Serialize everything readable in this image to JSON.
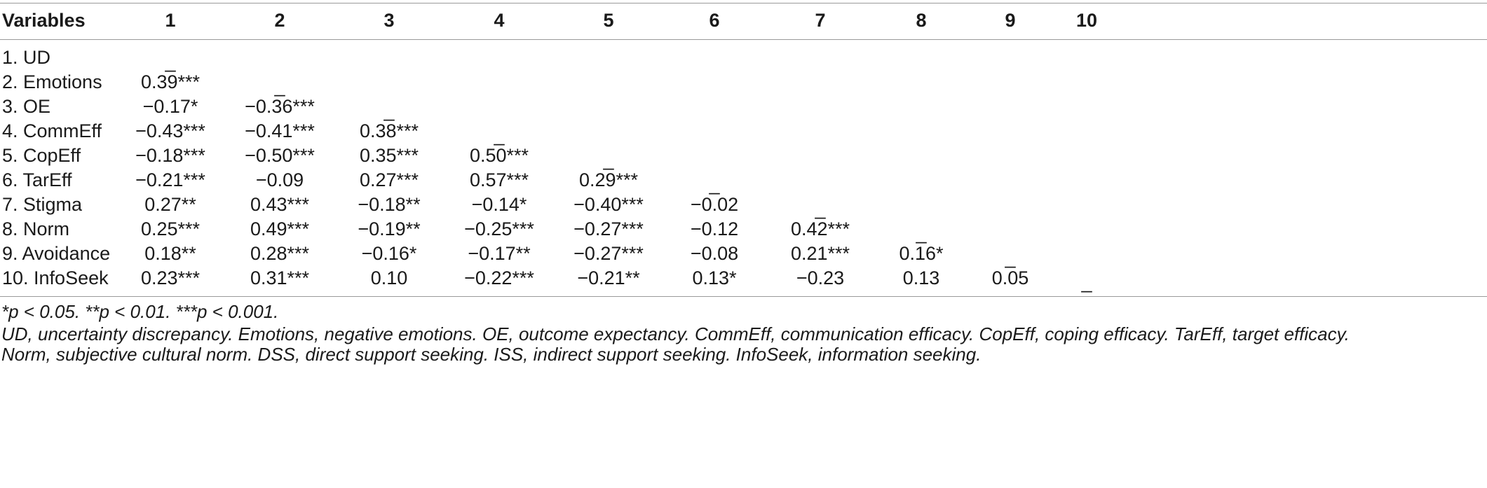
{
  "table": {
    "headers": [
      "Variables",
      "1",
      "2",
      "3",
      "4",
      "5",
      "6",
      "7",
      "8",
      "9",
      "10"
    ],
    "rows": [
      {
        "label": "1. UD",
        "cells": [
          "_",
          "",
          "",
          "",
          "",
          "",
          "",
          "",
          "",
          ""
        ]
      },
      {
        "label": "2. Emotions",
        "cells": [
          "0.39***",
          "_",
          "",
          "",
          "",
          "",
          "",
          "",
          "",
          ""
        ]
      },
      {
        "label": "3. OE",
        "cells": [
          "−0.17*",
          "−0.36***",
          "_",
          "",
          "",
          "",
          "",
          "",
          "",
          ""
        ]
      },
      {
        "label": "4. CommEff",
        "cells": [
          "−0.43***",
          "−0.41***",
          "0.38***",
          "_",
          "",
          "",
          "",
          "",
          "",
          ""
        ]
      },
      {
        "label": "5. CopEff",
        "cells": [
          "−0.18***",
          "−0.50***",
          "0.35***",
          "0.50***",
          "_",
          "",
          "",
          "",
          "",
          ""
        ]
      },
      {
        "label": "6. TarEff",
        "cells": [
          "−0.21***",
          "−0.09",
          "0.27***",
          "0.57***",
          "0.29***",
          "_",
          "",
          "",
          "",
          ""
        ]
      },
      {
        "label": "7. Stigma",
        "cells": [
          "0.27**",
          "0.43***",
          "−0.18**",
          "−0.14*",
          "−0.40***",
          "−0.02",
          "_",
          "",
          "",
          ""
        ]
      },
      {
        "label": "8. Norm",
        "cells": [
          "0.25***",
          "0.49***",
          "−0.19**",
          "−0.25***",
          "−0.27***",
          "−0.12",
          "0.42***",
          "_",
          "",
          ""
        ]
      },
      {
        "label": "9. Avoidance",
        "cells": [
          "0.18**",
          "0.28***",
          "−0.16*",
          "−0.17**",
          "−0.27***",
          "−0.08",
          "0.21***",
          "0.16*",
          "_",
          ""
        ]
      },
      {
        "label": "10. InfoSeek",
        "cells": [
          "0.23***",
          "0.31***",
          "0.10",
          "−0.22***",
          "−0.21**",
          "0.13*",
          "−0.23",
          "0.13",
          "0.05",
          "_"
        ]
      }
    ]
  },
  "footnotes": {
    "significance": "*p < 0.05. **p < 0.01. ***p < 0.001.",
    "abbrev_line1": "UD, uncertainty discrepancy. Emotions, negative emotions. OE, outcome expectancy. CommEff, communication efficacy. CopEff, coping efficacy. TarEff, target efficacy.",
    "abbrev_line2": "Norm, subjective cultural norm. DSS, direct support seeking. ISS, indirect support seeking. InfoSeek, information seeking."
  }
}
